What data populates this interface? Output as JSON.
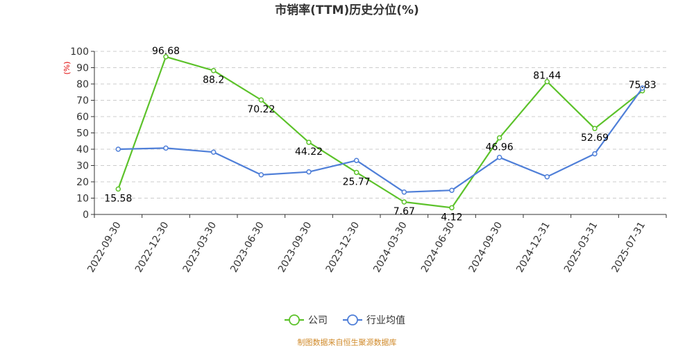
{
  "chart_data": {
    "type": "line",
    "title": "市销率(TTM)历史分位(%)",
    "ylabel": "(%)",
    "ylim": [
      0,
      100
    ],
    "yticks": [
      0,
      10,
      20,
      30,
      40,
      50,
      60,
      70,
      80,
      90,
      100
    ],
    "categories": [
      "2022-09-30",
      "2022-12-30",
      "2023-03-30",
      "2023-06-30",
      "2023-09-30",
      "2023-12-30",
      "2024-03-30",
      "2024-06-30",
      "2024-09-30",
      "2024-12-31",
      "2025-03-31",
      "2025-07-31"
    ],
    "grid": true,
    "legend_position": "bottom",
    "series": [
      {
        "name": "公司",
        "color": "#5cc22a",
        "values": [
          15.58,
          96.68,
          88.2,
          70.22,
          44.22,
          25.77,
          7.67,
          4.12,
          46.96,
          81.44,
          52.69,
          75.83
        ],
        "labels": [
          "15.58",
          "96.68",
          "88.2",
          "70.22",
          "44.22",
          "25.77",
          "7.67",
          "4.12",
          "46.96",
          "81.44",
          "52.69",
          "75.83"
        ]
      },
      {
        "name": "行业均值",
        "color": "#4f7fd8",
        "values": [
          40,
          40.7,
          38.2,
          24.3,
          26.1,
          33.1,
          13.7,
          14.8,
          35,
          23.1,
          37.2,
          77.5
        ]
      }
    ]
  },
  "source_note": "制图数据来自恒生聚源数据库"
}
